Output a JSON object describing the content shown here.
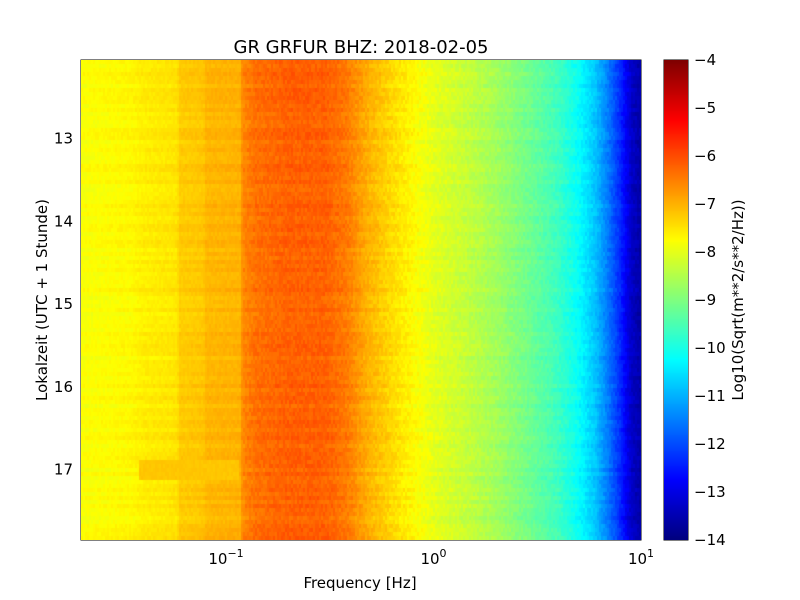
{
  "chart_data": {
    "type": "heatmap",
    "title": "GR GRFUR BHZ: 2018-02-05",
    "xlabel": "Frequency [Hz]",
    "ylabel": "Lokalzeit (UTC + 1 Stunde)",
    "x_scale": "log",
    "xlim": [
      0.02,
      10
    ],
    "ylim": [
      12.05,
      17.85
    ],
    "y_inverted": true,
    "x_ticks": [
      {
        "value": 0.1,
        "base": "10",
        "exp": "−1"
      },
      {
        "value": 1,
        "base": "10",
        "exp": "0"
      },
      {
        "value": 10,
        "base": "10",
        "exp": "1"
      }
    ],
    "y_ticks": [
      {
        "value": 13,
        "label": "13"
      },
      {
        "value": 14,
        "label": "14"
      },
      {
        "value": 15,
        "label": "15"
      },
      {
        "value": 16,
        "label": "16"
      },
      {
        "value": 17,
        "label": "17"
      }
    ],
    "colorbar": {
      "label": "Log10(Sqrt(m**2/s**2/Hz))",
      "range": [
        -14,
        -4
      ],
      "colormap": "jet",
      "ticks": [
        {
          "value": -4,
          "label": "−4"
        },
        {
          "value": -5,
          "label": "−5"
        },
        {
          "value": -6,
          "label": "−6"
        },
        {
          "value": -7,
          "label": "−7"
        },
        {
          "value": -8,
          "label": "−8"
        },
        {
          "value": -9,
          "label": "−9"
        },
        {
          "value": -10,
          "label": "−10"
        },
        {
          "value": -11,
          "label": "−11"
        },
        {
          "value": -12,
          "label": "−12"
        },
        {
          "value": -13,
          "label": "−13"
        },
        {
          "value": -14,
          "label": "−14"
        }
      ]
    },
    "spectrum_profile": [
      {
        "f": 0.02,
        "v": -7.8
      },
      {
        "f": 0.035,
        "v": -7.7
      },
      {
        "f": 0.04,
        "v": -7.6
      },
      {
        "f": 0.058,
        "v": -7.5
      },
      {
        "f": 0.06,
        "v": -7.25
      },
      {
        "f": 0.078,
        "v": -7.2
      },
      {
        "f": 0.08,
        "v": -7.05
      },
      {
        "f": 0.117,
        "v": -7.0
      },
      {
        "f": 0.12,
        "v": -6.6
      },
      {
        "f": 0.14,
        "v": -6.35
      },
      {
        "f": 0.2,
        "v": -6.2
      },
      {
        "f": 0.3,
        "v": -6.2
      },
      {
        "f": 0.38,
        "v": -6.45
      },
      {
        "f": 0.5,
        "v": -7.05
      },
      {
        "f": 0.7,
        "v": -7.55
      },
      {
        "f": 1.0,
        "v": -8.0
      },
      {
        "f": 1.5,
        "v": -8.35
      },
      {
        "f": 2.0,
        "v": -8.65
      },
      {
        "f": 3.0,
        "v": -9.2
      },
      {
        "f": 4.0,
        "v": -9.65
      },
      {
        "f": 5.0,
        "v": -10.2
      },
      {
        "f": 6.0,
        "v": -10.8
      },
      {
        "f": 7.0,
        "v": -11.6
      },
      {
        "f": 8.0,
        "v": -12.4
      },
      {
        "f": 9.0,
        "v": -13.3
      },
      {
        "f": 10.0,
        "v": -13.6
      }
    ],
    "anomaly": {
      "f_min": 0.038,
      "f_max": 0.115,
      "t_min": 16.85,
      "t_max": 17.1,
      "v": -7.2
    }
  }
}
